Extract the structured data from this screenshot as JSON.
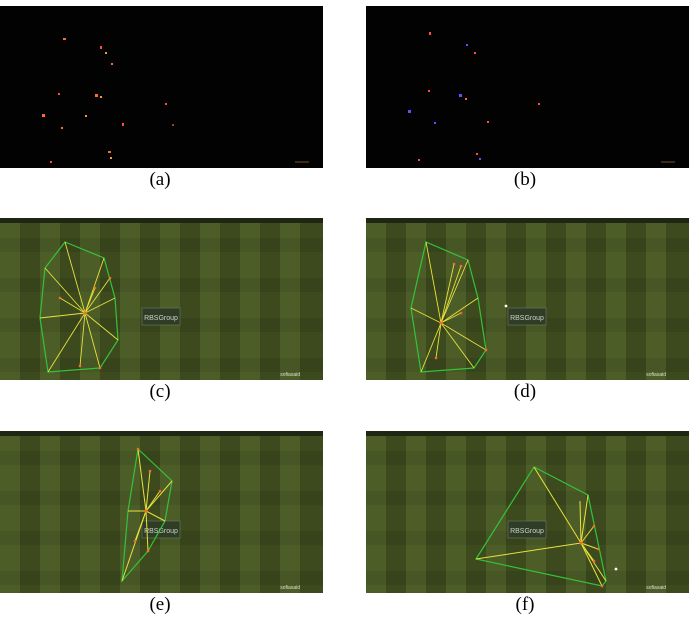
{
  "figure": {
    "panels": [
      {
        "id": "a",
        "caption": "(a)",
        "kind": "dark-detections"
      },
      {
        "id": "b",
        "caption": "(b)",
        "kind": "dark-detections"
      },
      {
        "id": "c",
        "caption": "(c)",
        "kind": "pitch",
        "sponsor_text": "RBSGroup",
        "watermark_text": "sofiasaid"
      },
      {
        "id": "d",
        "caption": "(d)",
        "kind": "pitch",
        "sponsor_text": "RBSGroup",
        "watermark_text": "sofiasaid"
      },
      {
        "id": "e",
        "caption": "(e)",
        "kind": "pitch",
        "sponsor_text": "RBSGroup",
        "watermark_text": "sofiasaid"
      },
      {
        "id": "f",
        "caption": "(f)",
        "kind": "pitch",
        "sponsor_text": "RBSGroup",
        "watermark_text": "sofiasaid"
      }
    ],
    "colors": {
      "dark_bg": "#020202",
      "pitch_dark": "#3c4a1e",
      "pitch_light": "#4d5d28",
      "hull": "#35c23a",
      "edge": "#e8e23a",
      "player": "#ff6a2a",
      "logo_bg": "#2f3d26",
      "logo_text": "#c9d3c4"
    }
  }
}
